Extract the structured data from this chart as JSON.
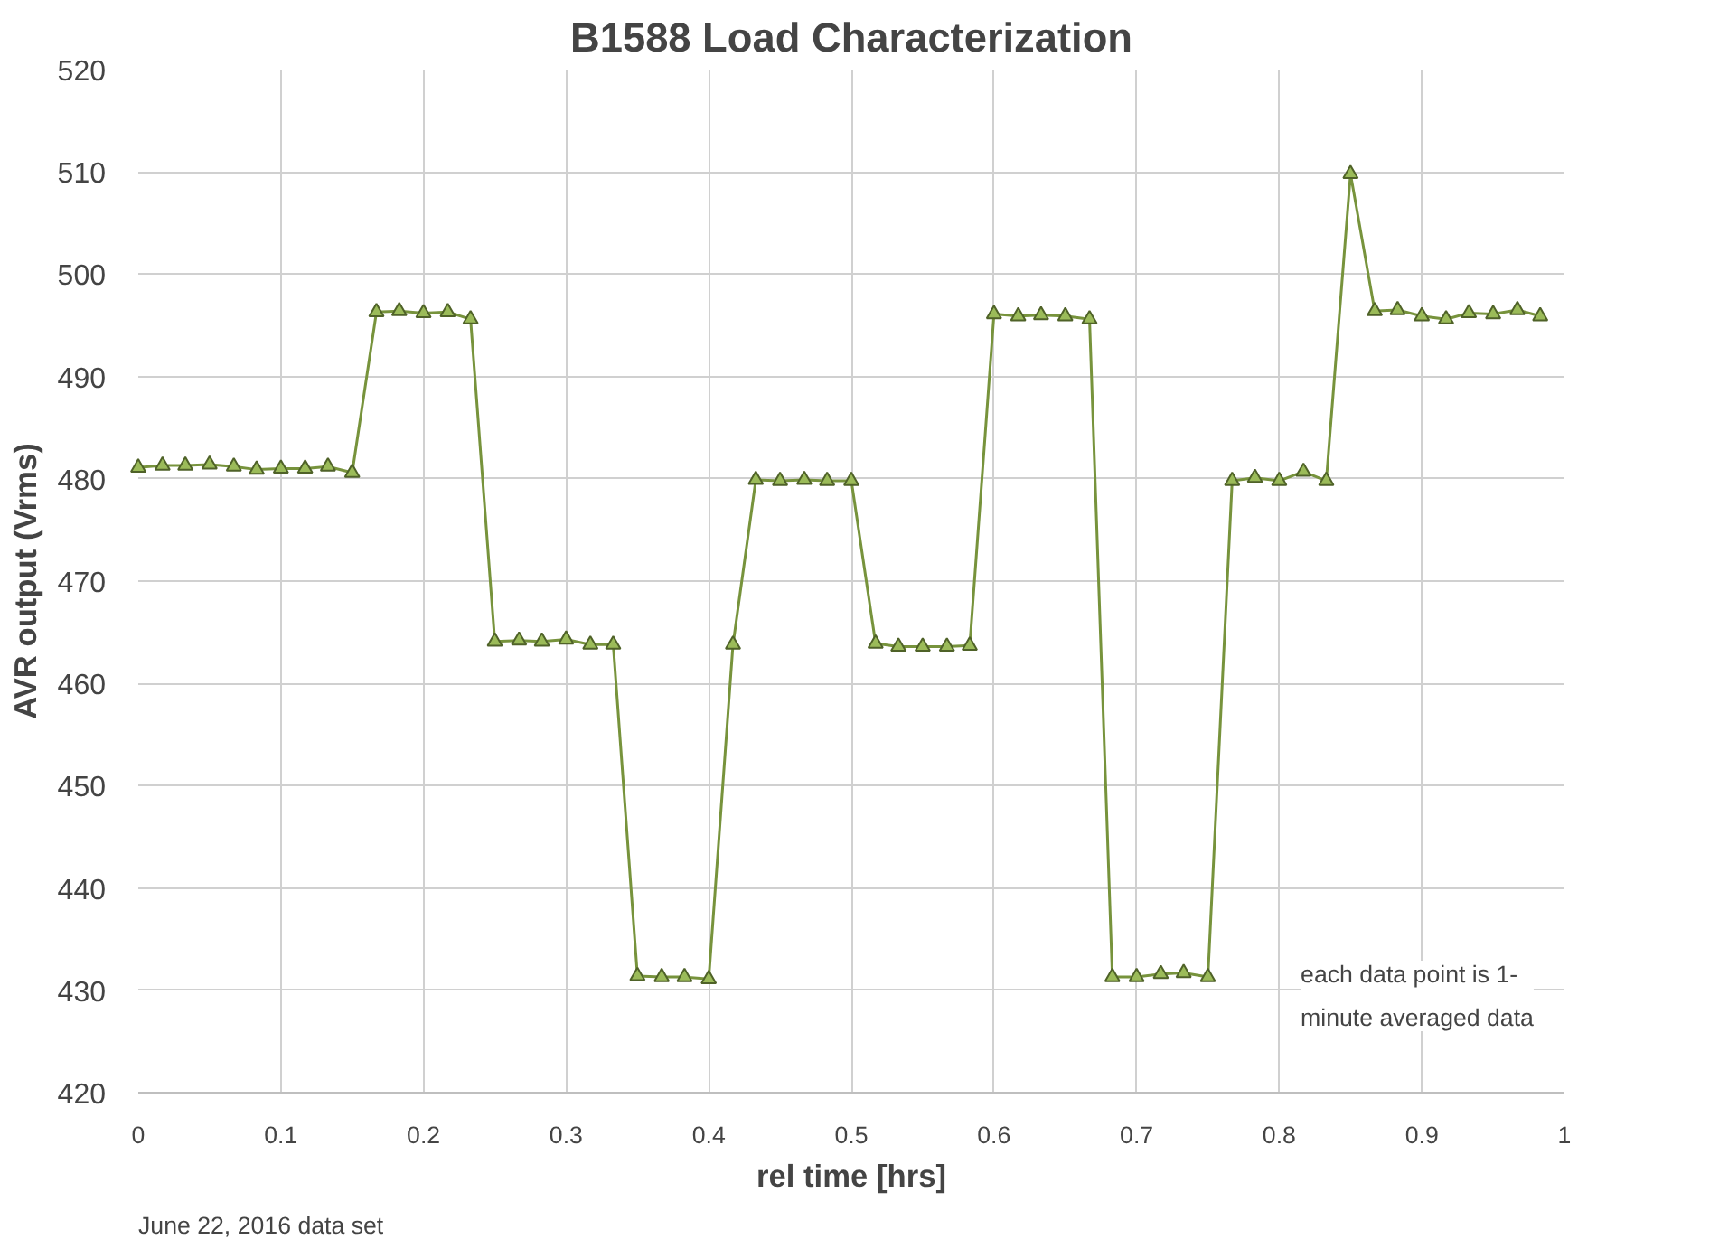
{
  "chart_data": {
    "type": "line",
    "title": "B1588 Load Characterization",
    "xlabel": "rel time [hrs]",
    "ylabel": "AVR output (Vrms)",
    "annotations": [
      "each data point is 1-\nminute averaged data",
      "June 22, 2016 data set"
    ],
    "x": [
      0,
      0.017,
      0.033,
      0.05,
      0.067,
      0.083,
      0.1,
      0.117,
      0.133,
      0.15,
      0.167,
      0.183,
      0.2,
      0.217,
      0.233,
      0.25,
      0.267,
      0.283,
      0.3,
      0.317,
      0.333,
      0.35,
      0.367,
      0.383,
      0.4,
      0.417,
      0.433,
      0.45,
      0.467,
      0.483,
      0.5,
      0.517,
      0.533,
      0.55,
      0.567,
      0.583,
      0.6,
      0.617,
      0.633,
      0.65,
      0.667,
      0.683,
      0.7,
      0.717,
      0.733,
      0.75,
      0.767,
      0.783,
      0.8,
      0.817,
      0.833,
      0.85,
      0.867,
      0.883,
      0.9,
      0.917,
      0.933,
      0.95,
      0.967,
      0.983
    ],
    "series": [
      {
        "color": "#77933c",
        "values": [
          481.1,
          481.3,
          481.3,
          481.4,
          481.2,
          480.9,
          481.0,
          481.0,
          481.2,
          480.6,
          496.3,
          496.4,
          496.2,
          496.3,
          495.6,
          464.1,
          464.2,
          464.1,
          464.3,
          463.8,
          463.8,
          431.4,
          431.3,
          431.3,
          431.1,
          463.8,
          479.9,
          479.8,
          479.9,
          479.8,
          479.8,
          463.9,
          463.6,
          463.6,
          463.6,
          463.7,
          496.1,
          495.9,
          496.0,
          495.9,
          495.6,
          431.3,
          431.3,
          431.6,
          431.7,
          431.3,
          479.8,
          480.1,
          479.8,
          480.7,
          479.8,
          509.8,
          496.4,
          496.5,
          495.9,
          495.6,
          496.2,
          496.1,
          496.5,
          495.9
        ]
      }
    ],
    "xlim": [
      0,
      1
    ],
    "xticks": [
      0,
      0.1,
      0.2,
      0.3,
      0.4,
      0.5,
      0.6,
      0.7,
      0.8,
      0.9,
      1
    ],
    "ylim": [
      420,
      520
    ],
    "yticks": [
      420,
      430,
      440,
      450,
      460,
      470,
      480,
      490,
      500,
      510,
      520
    ],
    "grid": true,
    "marker": "triangle",
    "line_style": "solid"
  }
}
